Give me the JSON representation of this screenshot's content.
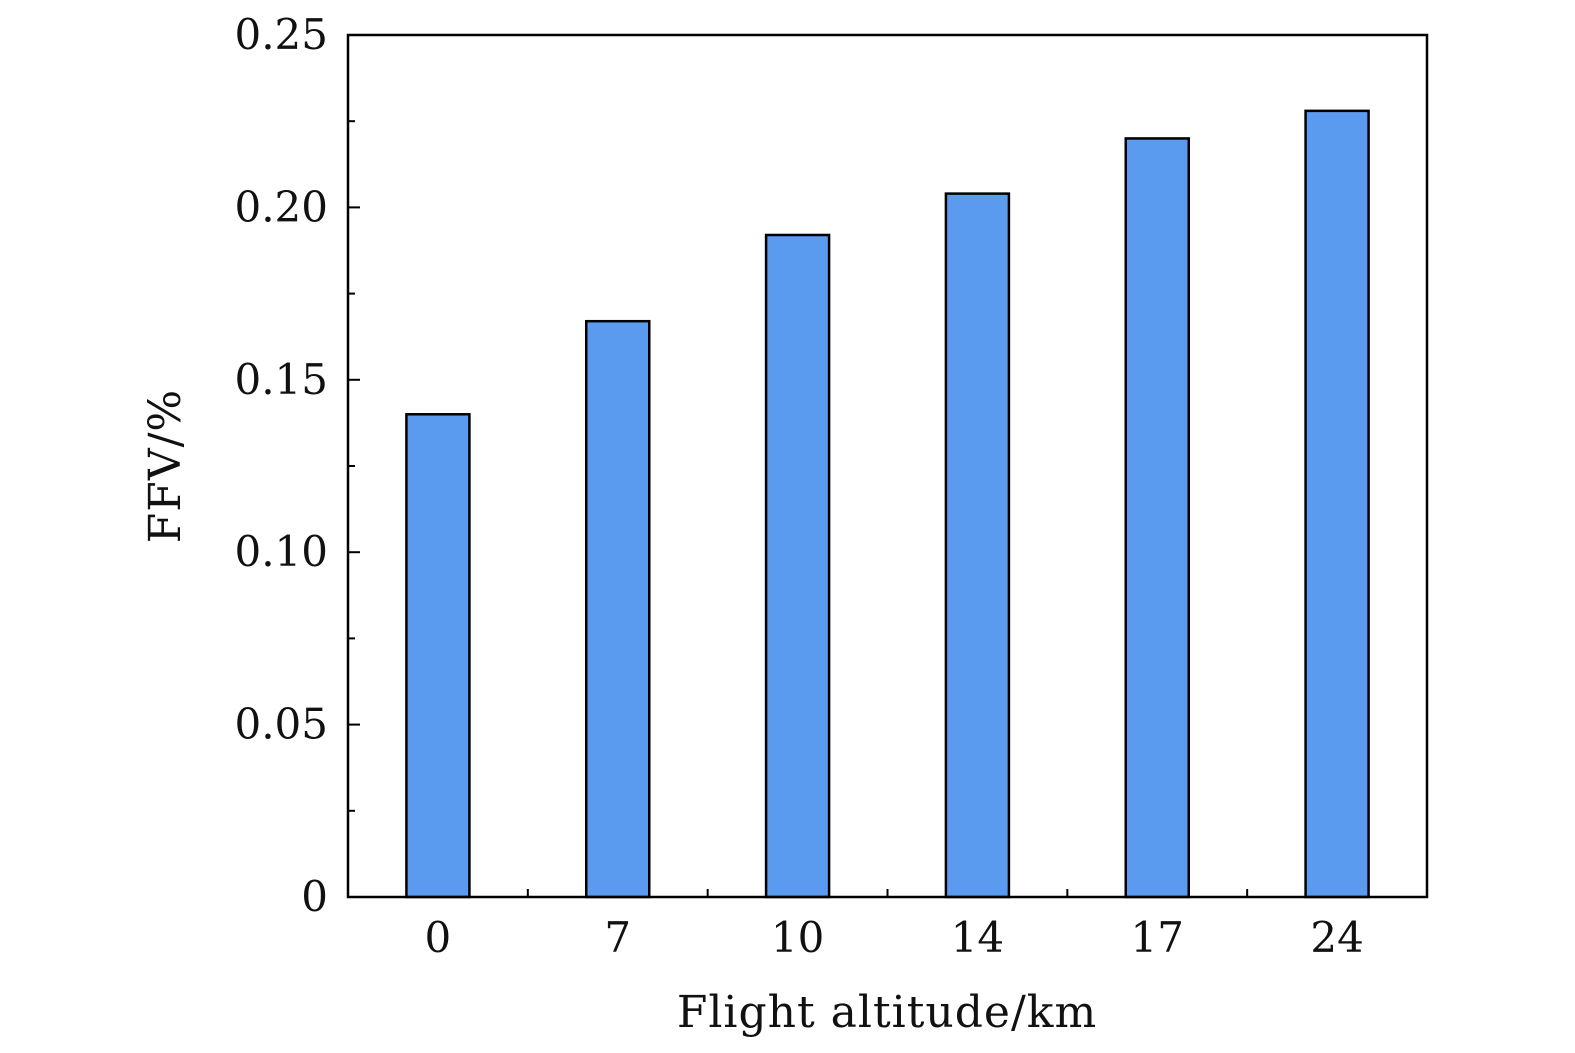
{
  "chart_data": {
    "type": "bar",
    "categories": [
      "0",
      "7",
      "10",
      "14",
      "17",
      "24"
    ],
    "values": [
      0.14,
      0.167,
      0.192,
      0.204,
      0.22,
      0.228
    ],
    "xlabel": "Flight altitude/km",
    "ylabel": "FFV/%",
    "ylim": [
      0,
      0.25
    ],
    "yticks": [
      "0",
      "0.05",
      "0.10",
      "0.15",
      "0.20",
      "0.25"
    ],
    "yticks_values": [
      0,
      0.05,
      0.1,
      0.15,
      0.2,
      0.25
    ],
    "grid": false,
    "legend": "none",
    "colors": {
      "bar_fill": "#5b9bef",
      "bar_stroke": "#000000",
      "axis": "#000000"
    }
  }
}
